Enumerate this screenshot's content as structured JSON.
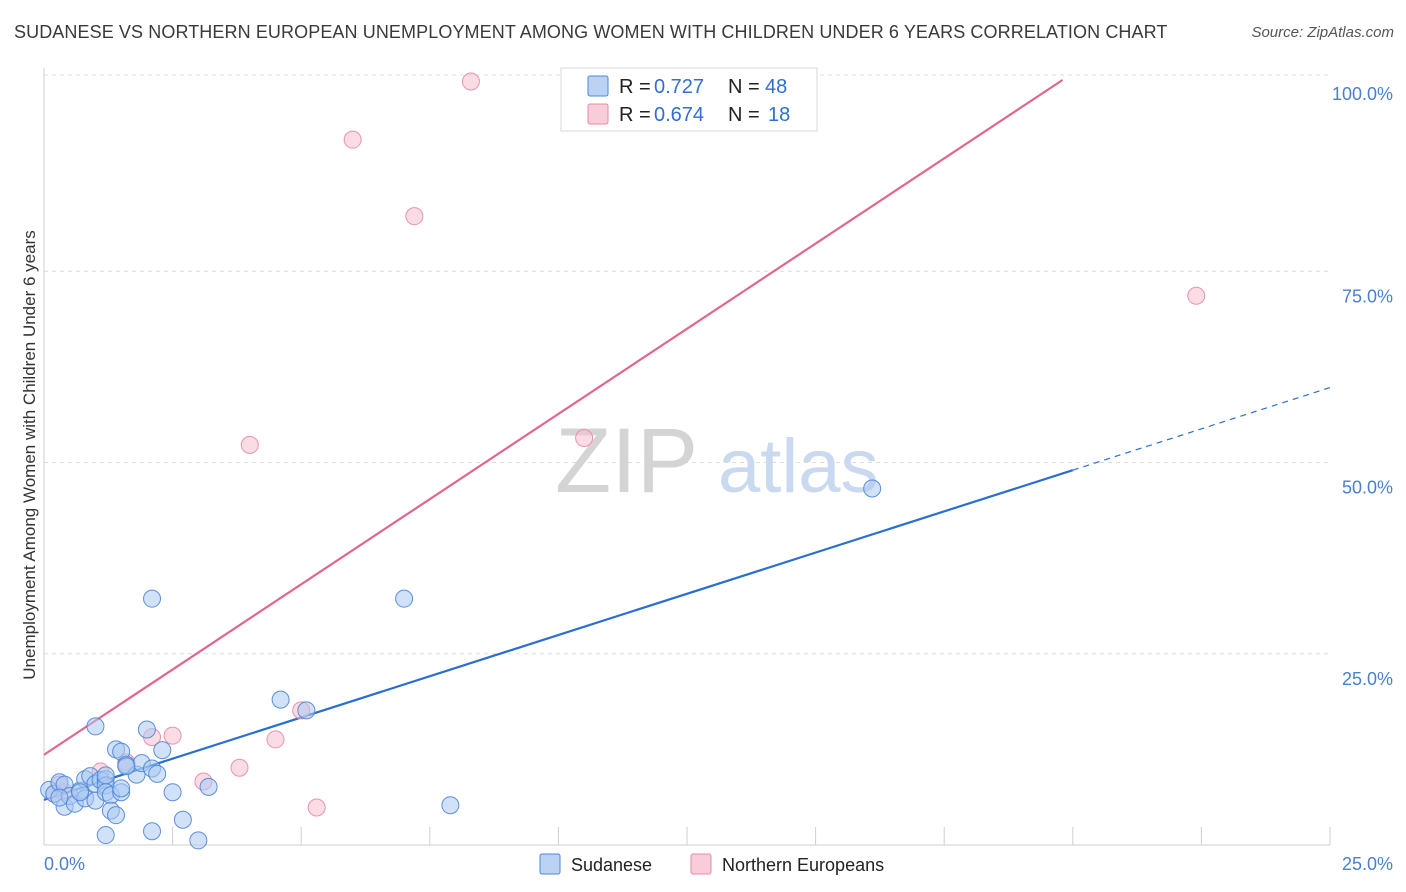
{
  "title": "SUDANESE VS NORTHERN EUROPEAN UNEMPLOYMENT AMONG WOMEN WITH CHILDREN UNDER 6 YEARS CORRELATION CHART",
  "source": "Source: ZipAtlas.com",
  "watermark": {
    "zip": "ZIP",
    "atlas": "atlas"
  },
  "colors": {
    "sudanese_fill": "#a9c8f2",
    "sudanese_stroke": "#4d86d6",
    "sudanese_line": "#2a6fd0",
    "northern_fill": "#f7bfd0",
    "northern_stroke": "#e58aa8",
    "northern_line": "#e06690",
    "grid": "#dcdcdc",
    "axis_text": "#4a7fd0"
  },
  "legend_stats": [
    {
      "r_label": "R = ",
      "r_value": "0.727",
      "n_label": "N = ",
      "n_value": "48"
    },
    {
      "r_label": "R = ",
      "r_value": "0.674",
      "n_label": "N = ",
      "n_value": "18"
    }
  ],
  "chart_data": {
    "type": "scatter",
    "title": "SUDANESE VS NORTHERN EUROPEAN UNEMPLOYMENT AMONG WOMEN WITH CHILDREN UNDER 6 YEARS CORRELATION CHART",
    "xlabel": "",
    "ylabel": "Unemployment Among Women with Children Under 6 years",
    "xlim": [
      0,
      25
    ],
    "ylim": [
      0,
      100
    ],
    "x_tick_labels": [
      "0.0%",
      "25.0%"
    ],
    "y_ticks": [
      25,
      50,
      75,
      100
    ],
    "y_tick_labels": [
      "25.0%",
      "50.0%",
      "75.0%",
      "100.0%"
    ],
    "series": [
      {
        "name": "Sudanese",
        "r": 0.727,
        "n": 48,
        "trend": {
          "x0": 0,
          "y0": 5.9,
          "x1": 20,
          "y1": 49.0,
          "x_dash_end": 25,
          "y_dash_end": 59.8
        },
        "points": [
          [
            0.1,
            7.2
          ],
          [
            0.2,
            6.7
          ],
          [
            0.3,
            8.2
          ],
          [
            0.4,
            7.9
          ],
          [
            0.4,
            5.0
          ],
          [
            0.5,
            6.4
          ],
          [
            0.6,
            5.4
          ],
          [
            0.7,
            7.1
          ],
          [
            0.8,
            6.1
          ],
          [
            0.8,
            8.6
          ],
          [
            0.9,
            9.0
          ],
          [
            1.0,
            5.8
          ],
          [
            1.0,
            8.0
          ],
          [
            1.1,
            8.5
          ],
          [
            1.0,
            15.5
          ],
          [
            1.2,
            8.6
          ],
          [
            1.2,
            7.8
          ],
          [
            1.2,
            9.1
          ],
          [
            1.2,
            6.9
          ],
          [
            1.3,
            6.5
          ],
          [
            1.2,
            1.3
          ],
          [
            1.3,
            4.5
          ],
          [
            1.4,
            3.9
          ],
          [
            1.4,
            12.5
          ],
          [
            1.5,
            6.9
          ],
          [
            1.5,
            12.2
          ],
          [
            1.5,
            7.4
          ],
          [
            1.6,
            10.5
          ],
          [
            1.8,
            9.2
          ],
          [
            1.9,
            10.7
          ],
          [
            2.0,
            15.1
          ],
          [
            2.1,
            32.2
          ],
          [
            2.1,
            1.8
          ],
          [
            2.1,
            10.0
          ],
          [
            2.2,
            9.3
          ],
          [
            2.3,
            12.4
          ],
          [
            2.5,
            6.9
          ],
          [
            2.7,
            3.3
          ],
          [
            3.0,
            0.6
          ],
          [
            3.2,
            7.6
          ],
          [
            4.6,
            19.0
          ],
          [
            5.1,
            17.6
          ],
          [
            7.0,
            32.2
          ],
          [
            7.9,
            5.2
          ],
          [
            16.1,
            46.6
          ],
          [
            0.3,
            6.2
          ],
          [
            0.7,
            6.9
          ],
          [
            1.6,
            10.3
          ]
        ]
      },
      {
        "name": "Northern Europeans",
        "r": 0.674,
        "n": 18,
        "trend": {
          "x0": 0,
          "y0": 11.8,
          "x1": 19.8,
          "y1": 100.0
        },
        "points": [
          [
            0.2,
            6.7
          ],
          [
            0.3,
            7.9
          ],
          [
            0.4,
            6.9
          ],
          [
            1.1,
            9.6
          ],
          [
            1.6,
            10.8
          ],
          [
            2.1,
            14.1
          ],
          [
            2.5,
            14.3
          ],
          [
            3.1,
            8.3
          ],
          [
            3.8,
            10.1
          ],
          [
            4.0,
            52.3
          ],
          [
            4.5,
            13.8
          ],
          [
            5.0,
            17.6
          ],
          [
            5.3,
            4.9
          ],
          [
            6.0,
            92.2
          ],
          [
            7.2,
            82.2
          ],
          [
            8.3,
            99.8
          ],
          [
            10.5,
            53.2
          ],
          [
            22.4,
            71.8
          ]
        ]
      }
    ]
  },
  "legend_bottom": [
    {
      "label": "Sudanese"
    },
    {
      "label": "Northern Europeans"
    }
  ]
}
